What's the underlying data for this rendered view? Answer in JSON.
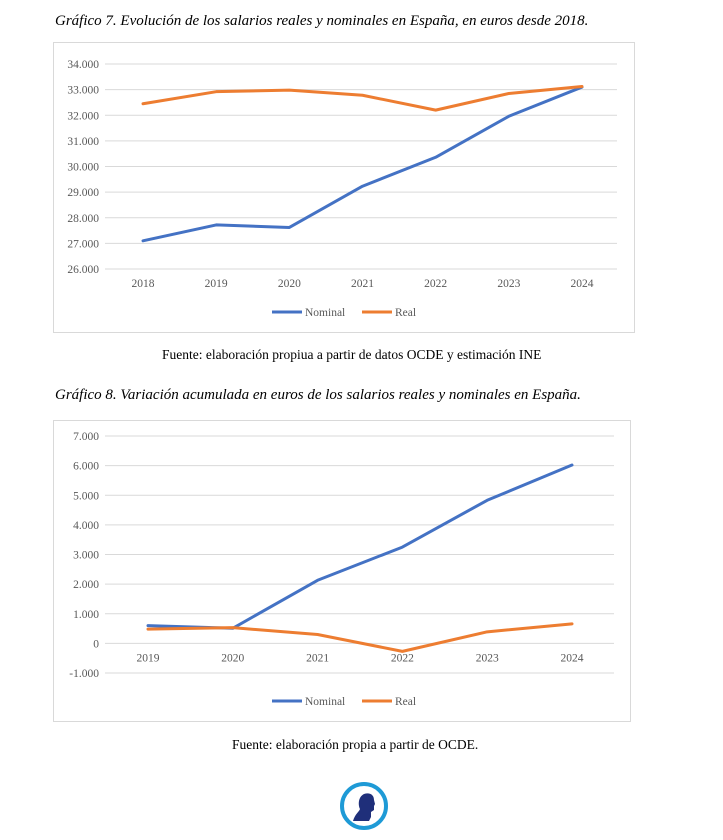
{
  "chart_data": [
    {
      "type": "line",
      "title": "Gráfico 7. Evolución de los salarios reales y nominales en España, en euros desde 2018.",
      "categories": [
        "2018",
        "2019",
        "2020",
        "2021",
        "2022",
        "2023",
        "2024"
      ],
      "ylim": [
        26000,
        34000
      ],
      "yticks": [
        26000,
        27000,
        28000,
        29000,
        30000,
        31000,
        32000,
        33000,
        34000
      ],
      "ytick_labels": [
        "26.000",
        "27.000",
        "28.000",
        "29.000",
        "30.000",
        "31.000",
        "32.000",
        "33.000",
        "34.000"
      ],
      "grid": true,
      "legend": "bottom",
      "series": [
        {
          "name": "Nominal",
          "color": "#4472c4",
          "values": [
            27100,
            27720,
            27620,
            29230,
            30360,
            31960,
            33100
          ]
        },
        {
          "name": "Real",
          "color": "#ed7d31",
          "values": [
            32450,
            32920,
            32980,
            32780,
            32200,
            32850,
            33120
          ]
        }
      ],
      "source": "Fuente: elaboración propiua a partir de datos OCDE y estimación INE"
    },
    {
      "type": "line",
      "title": "Gráfico 8. Variación acumulada en euros de los salarios reales y nominales en España.",
      "categories": [
        "2019",
        "2020",
        "2021",
        "2022",
        "2023",
        "2024"
      ],
      "ylim": [
        -1000,
        7000
      ],
      "yticks": [
        -1000,
        0,
        1000,
        2000,
        3000,
        4000,
        5000,
        6000,
        7000
      ],
      "ytick_labels": [
        "-1.000",
        "0",
        "1.000",
        "2.000",
        "3.000",
        "4.000",
        "5.000",
        "6.000",
        "7.000"
      ],
      "grid": true,
      "legend": "bottom",
      "series": [
        {
          "name": "Nominal",
          "color": "#4472c4",
          "values": [
            600,
            510,
            2130,
            3250,
            4830,
            6020
          ]
        },
        {
          "name": "Real",
          "color": "#ed7d31",
          "values": [
            480,
            530,
            300,
            -270,
            390,
            660
          ]
        }
      ],
      "source": "Fuente: elaboración propia a partir de OCDE."
    }
  ],
  "logo": {
    "icon": "profile-head-logo",
    "colors": {
      "ring": "#1e9ad6",
      "head": "#1f2f7a"
    }
  }
}
